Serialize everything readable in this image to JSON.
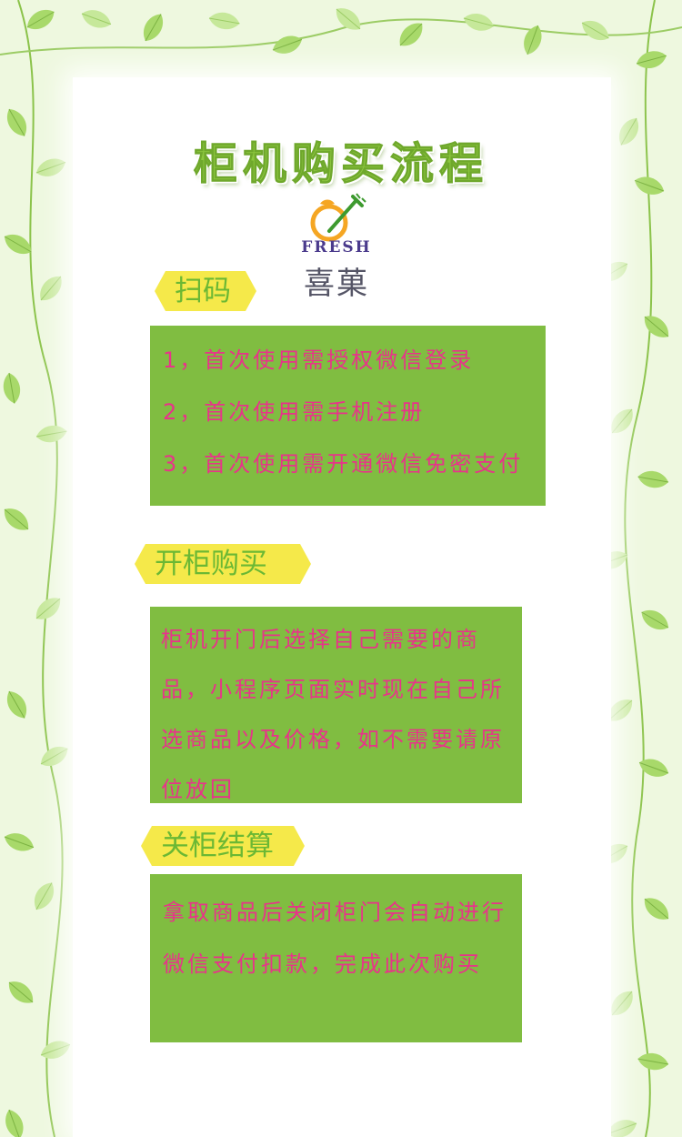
{
  "title": "柜机购买流程",
  "logo": {
    "icon": "orange-fork-icon",
    "word": "FRESH",
    "cn": "喜菓"
  },
  "sections": [
    {
      "heading": "扫码",
      "lines": [
        "1，首次使用需授权微信登录",
        "2，首次使用需手机注册",
        "3，首次使用需开通微信免密支付"
      ]
    },
    {
      "heading": "开柜购买",
      "lines": [
        "柜机开门后选择自己需要的商",
        "品，小程序页面实时现在自己所",
        "选商品以及价格，如不需要请原",
        "位放回"
      ]
    },
    {
      "heading": "关柜结算",
      "lines": [
        "拿取商品后关闭柜门会自动进行",
        "微信支付扣款，完成此次购买"
      ]
    }
  ],
  "colors": {
    "panel": "#80bd41",
    "ribbon": "#f5e94a",
    "heading_text": "#6bb834",
    "body_text": "#e8338a",
    "title": "#8cc63f"
  }
}
